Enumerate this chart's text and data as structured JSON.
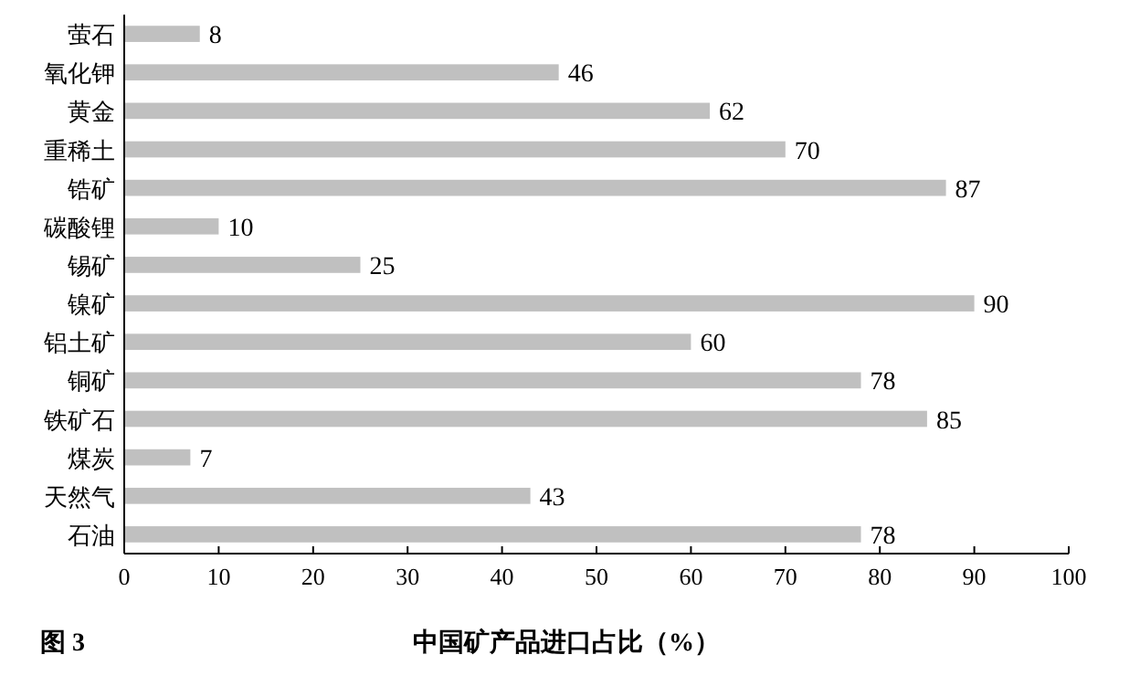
{
  "chart_data": {
    "type": "bar",
    "orientation": "horizontal",
    "xlabel": "中国矿产品进口占比（%）",
    "annotations": [
      "图 3"
    ],
    "categories": [
      "萤石",
      "氧化钾",
      "黄金",
      "重稀土",
      "锆矿",
      "碳酸锂",
      "锡矿",
      "镍矿",
      "铝土矿",
      "铜矿",
      "铁矿石",
      "煤炭",
      "天然气",
      "石油"
    ],
    "values": [
      8,
      46,
      62,
      70,
      87,
      10,
      25,
      90,
      60,
      78,
      85,
      7,
      43,
      78
    ],
    "color": "#c0c0c0",
    "data_labels": true,
    "xlim": [
      0,
      100
    ],
    "xticks": [
      0,
      10,
      20,
      30,
      40,
      50,
      60,
      70,
      80,
      90,
      100
    ],
    "grid": false
  }
}
